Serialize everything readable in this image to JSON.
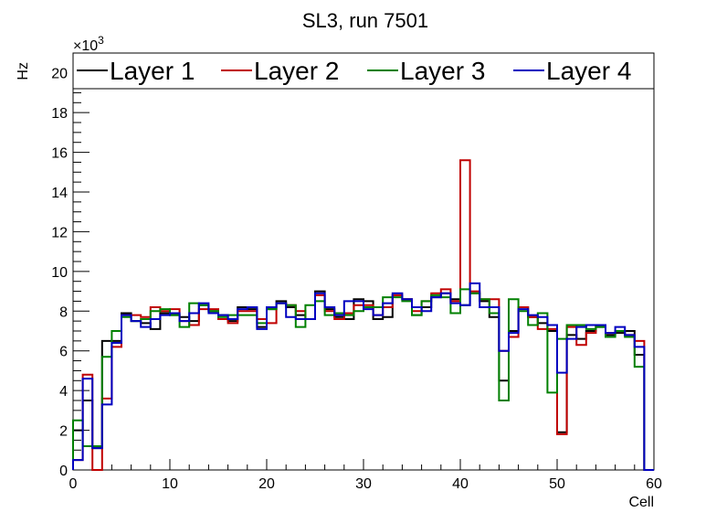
{
  "chart_data": {
    "type": "line",
    "step": true,
    "title": "SL3, run 7501",
    "xlabel": "Cell",
    "ylabel": "Hz",
    "y_multiplier_label": "×10",
    "y_multiplier_exp": "3",
    "xlim": [
      0,
      60
    ],
    "ylim": [
      0,
      21
    ],
    "x_ticks": [
      0,
      10,
      20,
      30,
      40,
      50,
      60
    ],
    "y_ticks": [
      0,
      2,
      4,
      6,
      8,
      10,
      12,
      14,
      16,
      18,
      20
    ],
    "legend_position": "top",
    "bin_edges_start": 0,
    "bin_width": 1,
    "series": [
      {
        "name": "Layer 1",
        "color": "#000000",
        "values": [
          2.0,
          3.5,
          1.1,
          6.5,
          6.5,
          7.9,
          7.5,
          7.4,
          7.1,
          7.9,
          7.8,
          7.7,
          7.5,
          8.3,
          8.0,
          7.8,
          7.5,
          8.2,
          8.1,
          7.2,
          8.1,
          8.5,
          8.2,
          7.8,
          7.6,
          9.0,
          8.1,
          7.7,
          7.6,
          8.6,
          8.5,
          7.6,
          7.7,
          8.8,
          8.6,
          7.8,
          8.2,
          8.7,
          8.9,
          8.6,
          8.3,
          8.9,
          8.5,
          7.7,
          4.5,
          7.0,
          8.2,
          7.7,
          7.4,
          7.0,
          1.9,
          6.8,
          6.6,
          7.0,
          7.2,
          6.8,
          6.9,
          7.0,
          5.8,
          0
        ]
      },
      {
        "name": "Layer 2",
        "color": "#c00000",
        "values": [
          0.5,
          4.8,
          0,
          3.6,
          6.2,
          7.8,
          7.8,
          7.7,
          8.2,
          8.0,
          8.1,
          7.5,
          7.3,
          8.1,
          8.1,
          7.6,
          7.4,
          8.0,
          8.0,
          7.6,
          7.4,
          8.4,
          8.3,
          8.0,
          7.6,
          8.8,
          8.0,
          7.6,
          7.9,
          8.3,
          8.3,
          7.8,
          8.2,
          8.8,
          8.6,
          8.0,
          8.5,
          8.9,
          9.1,
          8.5,
          15.6,
          9.0,
          8.6,
          8.6,
          6.0,
          6.7,
          8.2,
          7.7,
          7.1,
          7.1,
          1.8,
          7.2,
          6.3,
          6.9,
          7.3,
          6.9,
          7.0,
          6.8,
          6.5,
          0
        ]
      },
      {
        "name": "Layer 3",
        "color": "#008000",
        "values": [
          2.5,
          1.2,
          1.2,
          5.7,
          7.0,
          7.7,
          7.5,
          7.6,
          8.0,
          8.1,
          7.8,
          7.2,
          8.4,
          8.3,
          8.0,
          7.7,
          7.8,
          7.8,
          7.8,
          7.4,
          8.1,
          8.4,
          8.3,
          7.2,
          8.3,
          8.5,
          7.8,
          7.9,
          7.8,
          8.0,
          8.2,
          8.2,
          8.7,
          8.7,
          8.5,
          7.8,
          8.5,
          8.8,
          8.7,
          7.9,
          9.1,
          8.9,
          8.6,
          7.9,
          3.5,
          8.6,
          8.0,
          7.3,
          7.9,
          3.9,
          6.6,
          7.3,
          7.3,
          7.1,
          7.2,
          6.7,
          7.0,
          6.7,
          5.2,
          0
        ]
      },
      {
        "name": "Layer 4",
        "color": "#0000c0",
        "values": [
          0.5,
          4.6,
          1.1,
          3.3,
          6.4,
          7.8,
          7.5,
          7.2,
          7.6,
          7.8,
          7.9,
          7.5,
          7.9,
          8.4,
          7.9,
          7.8,
          7.6,
          8.1,
          8.2,
          7.1,
          8.2,
          8.4,
          7.7,
          7.6,
          7.6,
          8.9,
          8.2,
          7.8,
          8.5,
          8.5,
          8.1,
          7.8,
          8.4,
          8.9,
          8.6,
          8.2,
          8.0,
          8.7,
          8.9,
          8.4,
          8.3,
          9.4,
          8.2,
          8.2,
          6.0,
          6.9,
          8.1,
          7.8,
          7.7,
          7.3,
          4.9,
          6.6,
          7.2,
          7.3,
          7.3,
          6.9,
          7.2,
          6.8,
          6.2,
          0
        ]
      }
    ]
  }
}
